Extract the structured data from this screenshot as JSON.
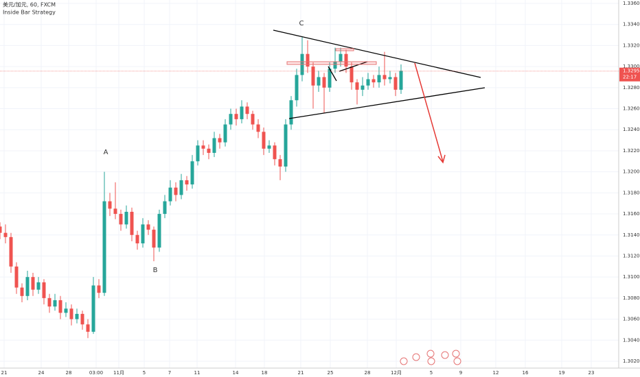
{
  "chart_data": {
    "type": "candlestick",
    "title": "美元/加元, 60, FXCM",
    "subtitle": "Inside Bar Strategy",
    "annotations": [
      "A",
      "B",
      "C"
    ],
    "last_price": 1.32957,
    "countdown": "22:17",
    "up_color": "#26a69a",
    "down_color": "#ef5350",
    "grid": true,
    "xlim": [
      0,
      225
    ],
    "ylim": [
      1.302,
      1.336
    ],
    "xticks": [
      {
        "value": 1.5,
        "label": "21"
      },
      {
        "value": 15,
        "label": "24"
      },
      {
        "value": 25,
        "label": "28"
      },
      {
        "value": 35,
        "label": "03:00"
      },
      {
        "value": 43.25,
        "label": "11月"
      },
      {
        "value": 52.5,
        "label": "5"
      },
      {
        "value": 61.75,
        "label": "7"
      },
      {
        "value": 71.75,
        "label": "11"
      },
      {
        "value": 85.75,
        "label": "14"
      },
      {
        "value": 96.25,
        "label": "18"
      },
      {
        "value": 109.5,
        "label": "21"
      },
      {
        "value": 120.25,
        "label": "25"
      },
      {
        "value": 133.75,
        "label": "28"
      },
      {
        "value": 144.25,
        "label": "12月"
      },
      {
        "value": 157,
        "label": "5"
      },
      {
        "value": 167.75,
        "label": "9"
      },
      {
        "value": 180.5,
        "label": "12"
      },
      {
        "value": 191.25,
        "label": "16"
      },
      {
        "value": 204.5,
        "label": "19"
      },
      {
        "value": 215.25,
        "label": "23"
      }
    ],
    "yticks": [
      {
        "value": 1.336,
        "label": "1.33600"
      },
      {
        "value": 1.334,
        "label": "1.33400"
      },
      {
        "value": 1.332,
        "label": "1.33200"
      },
      {
        "value": 1.33,
        "label": "1.33000"
      },
      {
        "value": 1.328,
        "label": "1.32800"
      },
      {
        "value": 1.326,
        "label": "1.32600"
      },
      {
        "value": 1.324,
        "label": "1.32400"
      },
      {
        "value": 1.322,
        "label": "1.32200"
      },
      {
        "value": 1.32,
        "label": "1.32000"
      },
      {
        "value": 1.318,
        "label": "1.31800"
      },
      {
        "value": 1.316,
        "label": "1.31600"
      },
      {
        "value": 1.314,
        "label": "1.31400"
      },
      {
        "value": 1.312,
        "label": "1.31200"
      },
      {
        "value": 1.31,
        "label": "1.31000"
      },
      {
        "value": 1.308,
        "label": "1.30800"
      },
      {
        "value": 1.306,
        "label": "1.30600"
      },
      {
        "value": 1.304,
        "label": "1.30400"
      },
      {
        "value": 1.302,
        "label": "1.30200"
      }
    ],
    "x": [
      0,
      2,
      4,
      6,
      8,
      10,
      12,
      14,
      16,
      18,
      20,
      22,
      24,
      26,
      28,
      30,
      32,
      34,
      36,
      38,
      40,
      42,
      44,
      46,
      48,
      50,
      52,
      54,
      56,
      58,
      60,
      62,
      64,
      66,
      68,
      70,
      72,
      74,
      76,
      78,
      80,
      82,
      84,
      86,
      88,
      90,
      92,
      94,
      96,
      98,
      100,
      102,
      104,
      106,
      108,
      110,
      112,
      114,
      116,
      118,
      120,
      122,
      124,
      126,
      128,
      130,
      132,
      134,
      136,
      138,
      140,
      142,
      144,
      146
    ],
    "open": [
      1.3148,
      1.3142,
      1.3138,
      1.311,
      1.309,
      1.3082,
      1.31,
      1.3088,
      1.3095,
      1.308,
      1.3072,
      1.3078,
      1.3066,
      1.307,
      1.306,
      1.3065,
      1.3055,
      1.3048,
      1.3092,
      1.3085,
      1.3172,
      1.3165,
      1.316,
      1.315,
      1.3162,
      1.314,
      1.3132,
      1.315,
      1.3145,
      1.3128,
      1.316,
      1.3172,
      1.3185,
      1.3178,
      1.3192,
      1.3188,
      1.321,
      1.3225,
      1.3222,
      1.3218,
      1.3232,
      1.3228,
      1.3245,
      1.3255,
      1.325,
      1.3262,
      1.3255,
      1.3245,
      1.3238,
      1.3222,
      1.3225,
      1.3212,
      1.3205,
      1.3245,
      1.3268,
      1.3292,
      1.3312,
      1.33,
      1.3282,
      1.329,
      1.328,
      1.3298,
      1.3305,
      1.3312,
      1.33,
      1.3285,
      1.3278,
      1.3282,
      1.3288,
      1.3285,
      1.3292,
      1.3288,
      1.329,
      1.3278
    ],
    "high": [
      1.3152,
      1.315,
      1.3142,
      1.3114,
      1.3094,
      1.3106,
      1.3104,
      1.31,
      1.3098,
      1.3084,
      1.3084,
      1.3082,
      1.3076,
      1.3074,
      1.307,
      1.3068,
      1.306,
      1.31,
      1.3098,
      1.32,
      1.318,
      1.319,
      1.3164,
      1.3168,
      1.3166,
      1.3144,
      1.3156,
      1.3154,
      1.3148,
      1.3164,
      1.3178,
      1.3192,
      1.319,
      1.3198,
      1.3196,
      1.3216,
      1.323,
      1.323,
      1.3226,
      1.3238,
      1.3236,
      1.325,
      1.326,
      1.326,
      1.3268,
      1.3266,
      1.3258,
      1.325,
      1.3242,
      1.323,
      1.3228,
      1.3216,
      1.325,
      1.3272,
      1.3298,
      1.3328,
      1.3325,
      1.3304,
      1.3296,
      1.3294,
      1.3304,
      1.3318,
      1.3318,
      1.3316,
      1.3304,
      1.3288,
      1.329,
      1.3294,
      1.3292,
      1.33,
      1.3314,
      1.3296,
      1.3294,
      1.3302
    ],
    "low": [
      1.3136,
      1.3132,
      1.3104,
      1.3084,
      1.3076,
      1.3078,
      1.3082,
      1.3084,
      1.3074,
      1.3066,
      1.3068,
      1.306,
      1.3062,
      1.3054,
      1.3056,
      1.305,
      1.3042,
      1.3046,
      1.308,
      1.3082,
      1.3158,
      1.3155,
      1.3144,
      1.3146,
      1.3134,
      1.3126,
      1.3128,
      1.314,
      1.3115,
      1.3124,
      1.3156,
      1.3168,
      1.3172,
      1.3174,
      1.3182,
      1.3184,
      1.3206,
      1.3216,
      1.3212,
      1.3214,
      1.3222,
      1.3224,
      1.324,
      1.3244,
      1.3246,
      1.325,
      1.324,
      1.3232,
      1.3216,
      1.3218,
      1.3206,
      1.3192,
      1.32,
      1.324,
      1.3262,
      1.3286,
      1.3294,
      1.326,
      1.3276,
      1.3256,
      1.3276,
      1.3294,
      1.33,
      1.3294,
      1.3278,
      1.3264,
      1.3272,
      1.3278,
      1.328,
      1.328,
      1.3282,
      1.3284,
      1.3272,
      1.3274
    ],
    "close": [
      1.3142,
      1.3138,
      1.311,
      1.309,
      1.3082,
      1.31,
      1.3088,
      1.3095,
      1.308,
      1.3072,
      1.3078,
      1.3066,
      1.307,
      1.306,
      1.3065,
      1.3055,
      1.3048,
      1.3092,
      1.3085,
      1.3172,
      1.3165,
      1.316,
      1.315,
      1.3162,
      1.314,
      1.3132,
      1.315,
      1.3145,
      1.3128,
      1.316,
      1.3172,
      1.3185,
      1.3178,
      1.3192,
      1.3188,
      1.321,
      1.3225,
      1.3222,
      1.3218,
      1.3232,
      1.3228,
      1.3245,
      1.3255,
      1.325,
      1.3262,
      1.3255,
      1.3245,
      1.3238,
      1.3222,
      1.3225,
      1.3212,
      1.3205,
      1.3245,
      1.3268,
      1.3292,
      1.3312,
      1.33,
      1.3282,
      1.329,
      1.328,
      1.3298,
      1.3305,
      1.3312,
      1.33,
      1.3285,
      1.3278,
      1.3282,
      1.3288,
      1.3285,
      1.3292,
      1.3288,
      1.329,
      1.3278,
      1.3296
    ]
  }
}
